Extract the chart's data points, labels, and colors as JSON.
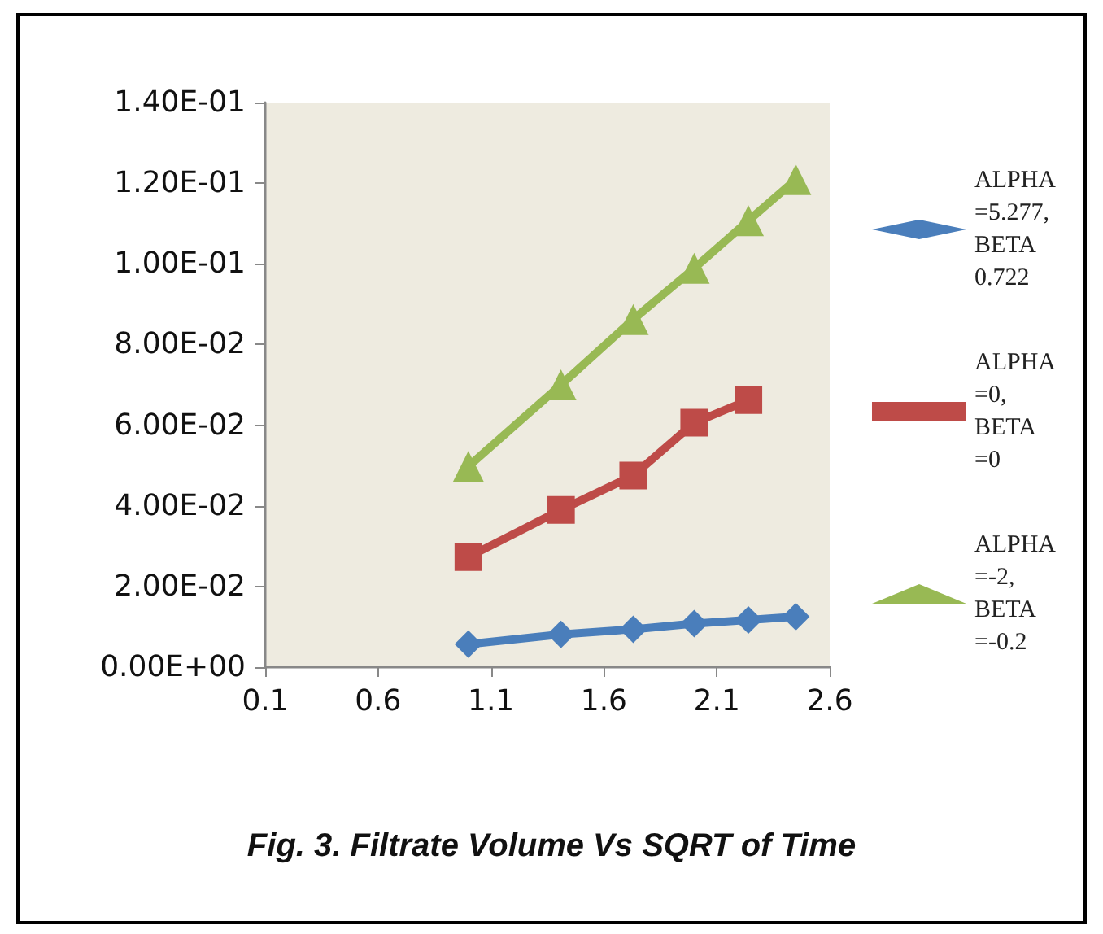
{
  "chart_data": {
    "type": "line",
    "title": "Fig. 3. Filtrate Volume Vs SQRT of Time",
    "x": [
      1.0,
      1.41,
      1.73,
      2.0,
      2.24,
      2.45
    ],
    "series": [
      {
        "name": "ALPHA =5.277, BETA 0.722",
        "color": "#4a7ebb",
        "marker": "diamond",
        "values": [
          0.0057,
          0.0081,
          0.0094,
          0.0108,
          0.0117,
          0.0125
        ]
      },
      {
        "name": "ALPHA =0, BETA =0",
        "color": "#be4b48",
        "marker": "square",
        "values": [
          0.0273,
          0.039,
          0.0475,
          0.0606,
          0.0662,
          null
        ]
      },
      {
        "name": "ALPHA =-2, BETA =-0.2",
        "color": "#98b954",
        "marker": "triangle",
        "values": [
          0.0498,
          0.07,
          0.0862,
          0.0989,
          0.1107,
          0.1209
        ]
      }
    ],
    "xlim": [
      0.1,
      2.6
    ],
    "xticks": [
      0.1,
      0.6,
      1.1,
      1.6,
      2.1,
      2.6
    ],
    "ylim": [
      0,
      0.14
    ],
    "yticks": [
      {
        "value": 0,
        "label": "0.00E+00"
      },
      {
        "value": 0.02,
        "label": "2.00E-02"
      },
      {
        "value": 0.04,
        "label": "4.00E-02"
      },
      {
        "value": 0.06,
        "label": "6.00E-02"
      },
      {
        "value": 0.08,
        "label": "8.00E-02"
      },
      {
        "value": 0.1,
        "label": "1.00E-01"
      },
      {
        "value": 0.12,
        "label": "1.20E-01"
      },
      {
        "value": 0.14,
        "label": "1.40E-01"
      }
    ],
    "grid": false,
    "legend": "right",
    "line_style": "solid"
  }
}
